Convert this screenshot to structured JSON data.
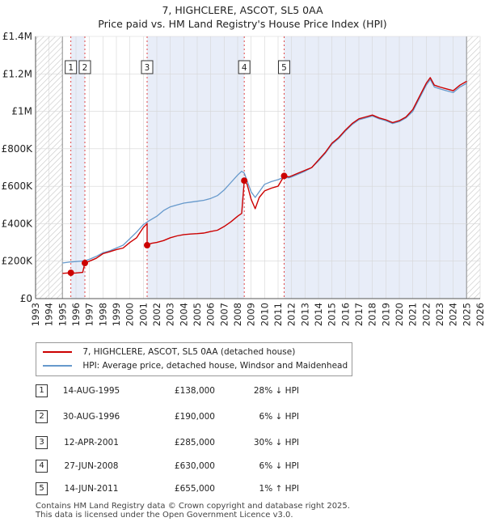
{
  "chart_data": {
    "type": "line",
    "title": "7, HIGHCLERE, ASCOT, SL5 0AA",
    "subtitle": "Price paid vs. HM Land Registry's House Price Index (HPI)",
    "ylim": [
      0,
      1400000
    ],
    "xlim": [
      1993,
      2026
    ],
    "y_ticks": [
      {
        "value": 0,
        "label": "£0"
      },
      {
        "value": 200000,
        "label": "£200K"
      },
      {
        "value": 400000,
        "label": "£400K"
      },
      {
        "value": 600000,
        "label": "£600K"
      },
      {
        "value": 800000,
        "label": "£800K"
      },
      {
        "value": 1000000,
        "label": "£1M"
      },
      {
        "value": 1200000,
        "label": "£1.2M"
      },
      {
        "value": 1400000,
        "label": "£1.4M"
      }
    ],
    "x_ticks": [
      "1993",
      "1994",
      "1995",
      "1996",
      "1997",
      "1998",
      "1999",
      "2000",
      "2001",
      "2002",
      "2003",
      "2004",
      "2005",
      "2006",
      "2007",
      "2008",
      "2009",
      "2010",
      "2011",
      "2012",
      "2013",
      "2014",
      "2015",
      "2016",
      "2017",
      "2018",
      "2019",
      "2020",
      "2021",
      "2022",
      "2023",
      "2024",
      "2025",
      "2026"
    ],
    "hatched_ranges": [
      [
        1993,
        1995.0
      ],
      [
        2025.0,
        2026
      ]
    ],
    "series": [
      {
        "name": "7, HIGHCLERE, ASCOT, SL5 0AA (detached house)",
        "color": "#cc0000",
        "points": [
          [
            1995.0,
            135000
          ],
          [
            1995.62,
            138000
          ],
          [
            1995.8,
            136000
          ],
          [
            1996.0,
            137000
          ],
          [
            1996.5,
            140000
          ],
          [
            1996.66,
            190000
          ],
          [
            1997.0,
            200000
          ],
          [
            1997.5,
            215000
          ],
          [
            1998.0,
            240000
          ],
          [
            1998.5,
            250000
          ],
          [
            1999.0,
            262000
          ],
          [
            1999.5,
            270000
          ],
          [
            2000.0,
            300000
          ],
          [
            2000.5,
            325000
          ],
          [
            2001.0,
            380000
          ],
          [
            2001.2,
            395000
          ],
          [
            2001.28,
            400000
          ],
          [
            2001.28,
            285000
          ],
          [
            2001.6,
            295000
          ],
          [
            2002.0,
            300000
          ],
          [
            2002.5,
            310000
          ],
          [
            2003.0,
            325000
          ],
          [
            2003.5,
            335000
          ],
          [
            2004.0,
            342000
          ],
          [
            2004.5,
            345000
          ],
          [
            2005.0,
            347000
          ],
          [
            2005.5,
            350000
          ],
          [
            2006.0,
            358000
          ],
          [
            2006.5,
            365000
          ],
          [
            2007.0,
            385000
          ],
          [
            2007.5,
            410000
          ],
          [
            2008.0,
            440000
          ],
          [
            2008.3,
            455000
          ],
          [
            2008.49,
            630000
          ],
          [
            2008.7,
            610000
          ],
          [
            2009.0,
            530000
          ],
          [
            2009.3,
            480000
          ],
          [
            2009.6,
            540000
          ],
          [
            2010.0,
            575000
          ],
          [
            2010.5,
            590000
          ],
          [
            2011.0,
            600000
          ],
          [
            2011.45,
            655000
          ],
          [
            2011.8,
            650000
          ],
          [
            2012.0,
            655000
          ],
          [
            2012.5,
            670000
          ],
          [
            2013.0,
            685000
          ],
          [
            2013.5,
            700000
          ],
          [
            2014.0,
            740000
          ],
          [
            2014.5,
            780000
          ],
          [
            2015.0,
            830000
          ],
          [
            2015.5,
            860000
          ],
          [
            2016.0,
            900000
          ],
          [
            2016.5,
            935000
          ],
          [
            2017.0,
            960000
          ],
          [
            2017.5,
            970000
          ],
          [
            2018.0,
            980000
          ],
          [
            2018.5,
            965000
          ],
          [
            2019.0,
            955000
          ],
          [
            2019.5,
            940000
          ],
          [
            2020.0,
            950000
          ],
          [
            2020.5,
            970000
          ],
          [
            2021.0,
            1010000
          ],
          [
            2021.5,
            1080000
          ],
          [
            2022.0,
            1150000
          ],
          [
            2022.3,
            1180000
          ],
          [
            2022.6,
            1140000
          ],
          [
            2023.0,
            1130000
          ],
          [
            2023.5,
            1120000
          ],
          [
            2024.0,
            1110000
          ],
          [
            2024.5,
            1140000
          ],
          [
            2025.0,
            1160000
          ]
        ]
      },
      {
        "name": "HPI: Average price, detached house, Windsor and Maidenhead",
        "color": "#6699cc",
        "points": [
          [
            1995.0,
            190000
          ],
          [
            1995.5,
            195000
          ],
          [
            1996.0,
            198000
          ],
          [
            1996.66,
            202000
          ],
          [
            1997.0,
            210000
          ],
          [
            1997.5,
            225000
          ],
          [
            1998.0,
            245000
          ],
          [
            1998.5,
            255000
          ],
          [
            1999.0,
            270000
          ],
          [
            1999.5,
            285000
          ],
          [
            2000.0,
            320000
          ],
          [
            2000.5,
            355000
          ],
          [
            2001.0,
            395000
          ],
          [
            2001.3,
            410000
          ],
          [
            2002.0,
            440000
          ],
          [
            2002.5,
            470000
          ],
          [
            2003.0,
            490000
          ],
          [
            2003.5,
            500000
          ],
          [
            2004.0,
            510000
          ],
          [
            2004.5,
            515000
          ],
          [
            2005.0,
            520000
          ],
          [
            2005.5,
            525000
          ],
          [
            2006.0,
            535000
          ],
          [
            2006.5,
            550000
          ],
          [
            2007.0,
            580000
          ],
          [
            2007.5,
            620000
          ],
          [
            2008.0,
            660000
          ],
          [
            2008.3,
            680000
          ],
          [
            2008.49,
            670000
          ],
          [
            2008.8,
            610000
          ],
          [
            2009.0,
            570000
          ],
          [
            2009.3,
            540000
          ],
          [
            2009.7,
            580000
          ],
          [
            2010.0,
            610000
          ],
          [
            2010.5,
            625000
          ],
          [
            2011.0,
            635000
          ],
          [
            2011.45,
            648000
          ],
          [
            2011.8,
            645000
          ],
          [
            2012.0,
            650000
          ],
          [
            2012.5,
            665000
          ],
          [
            2013.0,
            680000
          ],
          [
            2013.5,
            700000
          ],
          [
            2014.0,
            735000
          ],
          [
            2014.5,
            775000
          ],
          [
            2015.0,
            825000
          ],
          [
            2015.5,
            855000
          ],
          [
            2016.0,
            895000
          ],
          [
            2016.5,
            930000
          ],
          [
            2017.0,
            955000
          ],
          [
            2017.5,
            965000
          ],
          [
            2018.0,
            975000
          ],
          [
            2018.5,
            960000
          ],
          [
            2019.0,
            950000
          ],
          [
            2019.5,
            935000
          ],
          [
            2020.0,
            945000
          ],
          [
            2020.5,
            965000
          ],
          [
            2021.0,
            1000000
          ],
          [
            2021.5,
            1070000
          ],
          [
            2022.0,
            1140000
          ],
          [
            2022.3,
            1170000
          ],
          [
            2022.6,
            1130000
          ],
          [
            2023.0,
            1120000
          ],
          [
            2023.5,
            1110000
          ],
          [
            2024.0,
            1100000
          ],
          [
            2024.5,
            1130000
          ],
          [
            2025.0,
            1150000
          ]
        ]
      }
    ],
    "sales": [
      {
        "marker": "1",
        "date": "14-AUG-1995",
        "x": 1995.62,
        "price": 138000,
        "price_label": "£138,000",
        "relation": "28% ↓ HPI"
      },
      {
        "marker": "2",
        "date": "30-AUG-1996",
        "x": 1996.66,
        "price": 190000,
        "price_label": "£190,000",
        "relation": "6% ↓ HPI"
      },
      {
        "marker": "3",
        "date": "12-APR-2001",
        "x": 2001.28,
        "price": 285000,
        "price_label": "£285,000",
        "relation": "30% ↓ HPI"
      },
      {
        "marker": "4",
        "date": "27-JUN-2008",
        "x": 2008.49,
        "price": 630000,
        "price_label": "£630,000",
        "relation": "6% ↓ HPI"
      },
      {
        "marker": "5",
        "date": "14-JUN-2011",
        "x": 2011.45,
        "price": 655000,
        "price_label": "£655,000",
        "relation": "1% ↑ HPI"
      }
    ]
  },
  "footer": {
    "line1": "Contains HM Land Registry data © Crown copyright and database right 2025.",
    "line2": "This data is licensed under the Open Government Licence v3.0."
  }
}
